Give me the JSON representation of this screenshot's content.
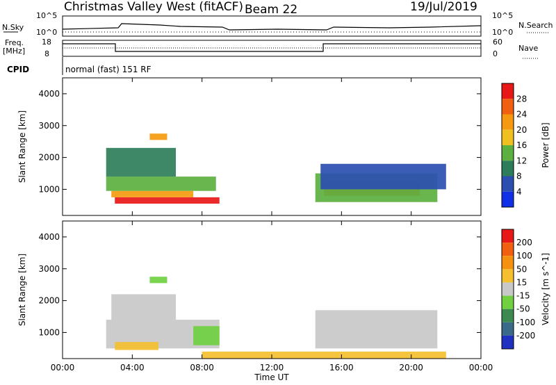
{
  "header": {
    "site": "Christmas Valley West (fitACF)",
    "beam": "Beam 22",
    "date": "19/Jul/2019"
  },
  "status": {
    "nsky_label": "N.Sky",
    "nsky_ticks": [
      "10^5",
      "10^0"
    ],
    "nsearch_label": "N.Search",
    "nsearch_ticks": [
      "10^5",
      "10^0"
    ],
    "freq_label_1": "Freq.",
    "freq_label_2": "[MHz]",
    "freq_ticks": [
      "18",
      "8"
    ],
    "nave_label": "Nave",
    "nave_ticks": [
      "60",
      "0"
    ],
    "cpid_label": "CPID",
    "cpid_text": "normal (fast) 151 RF"
  },
  "chart_data": [
    {
      "type": "heatmap",
      "name": "power",
      "xlabel": "",
      "ylabel": "Slant Range [km]",
      "x_ticks": [
        "00:00",
        "04:00",
        "08:00",
        "12:00",
        "16:00",
        "20:00",
        "00:00"
      ],
      "y_ticks": [
        "1000",
        "2000",
        "3000",
        "4000"
      ],
      "ylim": [
        180,
        4500
      ],
      "colorbar_label": "Power [dB]",
      "colorbar_ticks": [
        "4",
        "8",
        "12",
        "16",
        "20",
        "24",
        "28"
      ],
      "colorbar_colors": [
        "#1030e8",
        "#2b4fb0",
        "#2e7d5a",
        "#5cb040",
        "#f0c020",
        "#f59a10",
        "#f06010",
        "#e81818"
      ],
      "regions": [
        {
          "t0": 3.0,
          "t1": 9.0,
          "r0": 550,
          "r1": 750,
          "level": 7
        },
        {
          "t0": 2.8,
          "t1": 7.5,
          "r0": 750,
          "r1": 950,
          "level": 5
        },
        {
          "t0": 2.5,
          "t1": 8.8,
          "r0": 950,
          "r1": 1400,
          "level": 3
        },
        {
          "t0": 2.5,
          "t1": 6.5,
          "r0": 1400,
          "r1": 2300,
          "level": 2
        },
        {
          "t0": 5.0,
          "t1": 6.0,
          "r0": 2550,
          "r1": 2750,
          "level": 5
        },
        {
          "t0": 15.0,
          "t1": 20.5,
          "r0": 800,
          "r1": 1250,
          "level": 6
        },
        {
          "t0": 14.5,
          "t1": 21.5,
          "r0": 600,
          "r1": 1500,
          "level": 3
        },
        {
          "t0": 14.8,
          "t1": 22.0,
          "r0": 1000,
          "r1": 1800,
          "level": 1
        }
      ]
    },
    {
      "type": "heatmap",
      "name": "velocity",
      "xlabel": "Time UT",
      "ylabel": "Slant Range [km]",
      "x_ticks": [
        "00:00",
        "04:00",
        "08:00",
        "12:00",
        "16:00",
        "20:00",
        "00:00"
      ],
      "y_ticks": [
        "1000",
        "2000",
        "3000",
        "4000"
      ],
      "ylim": [
        180,
        4500
      ],
      "colorbar_label": "Velocity [m s^-1]",
      "colorbar_ticks": [
        "200",
        "100",
        "50",
        "15",
        "-15",
        "-50",
        "-100",
        "-200"
      ],
      "colorbar_colors": [
        "#2030c0",
        "#3a6a8a",
        "#3c8a50",
        "#70d040",
        "#c8c8c8",
        "#f5c030",
        "#f59010",
        "#f06010",
        "#e81818"
      ],
      "regions": [
        {
          "t0": 2.5,
          "t1": 9.0,
          "r0": 500,
          "r1": 1400,
          "level": 4
        },
        {
          "t0": 3.0,
          "t1": 5.5,
          "r0": 450,
          "r1": 700,
          "level": 5
        },
        {
          "t0": 7.5,
          "t1": 9.0,
          "r0": 600,
          "r1": 1200,
          "level": 3
        },
        {
          "t0": 2.8,
          "t1": 6.5,
          "r0": 1400,
          "r1": 2200,
          "level": 4
        },
        {
          "t0": 5.0,
          "t1": 6.0,
          "r0": 2550,
          "r1": 2750,
          "level": 3
        },
        {
          "t0": 14.5,
          "t1": 21.5,
          "r0": 500,
          "r1": 1700,
          "level": 4
        },
        {
          "t0": 8.0,
          "t1": 22.0,
          "r0": 180,
          "r1": 400,
          "level": 5
        }
      ]
    }
  ]
}
